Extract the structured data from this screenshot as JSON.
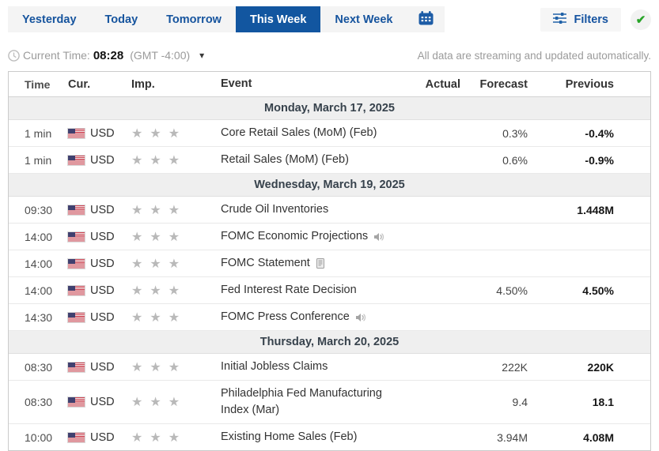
{
  "tabs": {
    "items": [
      {
        "label": "Yesterday",
        "active": false
      },
      {
        "label": "Today",
        "active": false
      },
      {
        "label": "Tomorrow",
        "active": false
      },
      {
        "label": "This Week",
        "active": true
      },
      {
        "label": "Next Week",
        "active": false
      }
    ]
  },
  "toolbar": {
    "filters_label": "Filters"
  },
  "current_time": {
    "label": "Current Time:",
    "time": "08:28",
    "timezone": "(GMT -4:00)"
  },
  "streaming_note": "All data are streaming and updated automatically.",
  "table": {
    "headers": {
      "time": "Time",
      "cur": "Cur.",
      "imp": "Imp.",
      "event": "Event",
      "actual": "Actual",
      "forecast": "Forecast",
      "previous": "Previous"
    },
    "sections": [
      {
        "date": "Monday, March 17, 2025",
        "rows": [
          {
            "time": "1 min",
            "currency": "USD",
            "importance": 3,
            "event": "Core Retail Sales (MoM) (Feb)",
            "icon": "",
            "actual": "",
            "forecast": "0.3%",
            "previous": "-0.4%"
          },
          {
            "time": "1 min",
            "currency": "USD",
            "importance": 3,
            "event": "Retail Sales (MoM) (Feb)",
            "icon": "",
            "actual": "",
            "forecast": "0.6%",
            "previous": "-0.9%"
          }
        ]
      },
      {
        "date": "Wednesday, March 19, 2025",
        "rows": [
          {
            "time": "09:30",
            "currency": "USD",
            "importance": 3,
            "event": "Crude Oil Inventories",
            "icon": "",
            "actual": "",
            "forecast": "",
            "previous": "1.448M"
          },
          {
            "time": "14:00",
            "currency": "USD",
            "importance": 3,
            "event": "FOMC Economic Projections",
            "icon": "speaker",
            "actual": "",
            "forecast": "",
            "previous": ""
          },
          {
            "time": "14:00",
            "currency": "USD",
            "importance": 3,
            "event": "FOMC Statement",
            "icon": "document",
            "actual": "",
            "forecast": "",
            "previous": ""
          },
          {
            "time": "14:00",
            "currency": "USD",
            "importance": 3,
            "event": "Fed Interest Rate Decision",
            "icon": "",
            "actual": "",
            "forecast": "4.50%",
            "previous": "4.50%"
          },
          {
            "time": "14:30",
            "currency": "USD",
            "importance": 3,
            "event": "FOMC Press Conference",
            "icon": "speaker",
            "actual": "",
            "forecast": "",
            "previous": ""
          }
        ]
      },
      {
        "date": "Thursday, March 20, 2025",
        "rows": [
          {
            "time": "08:30",
            "currency": "USD",
            "importance": 3,
            "event": "Initial Jobless Claims",
            "icon": "",
            "actual": "",
            "forecast": "222K",
            "previous": "220K"
          },
          {
            "time": "08:30",
            "currency": "USD",
            "importance": 3,
            "event": "Philadelphia Fed Manufacturing Index (Mar)",
            "icon": "",
            "actual": "",
            "forecast": "9.4",
            "previous": "18.1"
          },
          {
            "time": "10:00",
            "currency": "USD",
            "importance": 3,
            "event": "Existing Home Sales (Feb)",
            "icon": "",
            "actual": "",
            "forecast": "3.94M",
            "previous": "4.08M"
          }
        ]
      }
    ]
  },
  "icons": {
    "star": "★",
    "check": "✔",
    "chevron_down": "▾"
  },
  "colors": {
    "accent_blue": "#1256a0",
    "tab_text_blue": "#16549e",
    "star_gray": "#b9b9b9",
    "check_green": "#28a428",
    "day_header_bg": "#efefef",
    "flag_red": "#cd4050",
    "flag_blue": "#40406f"
  }
}
